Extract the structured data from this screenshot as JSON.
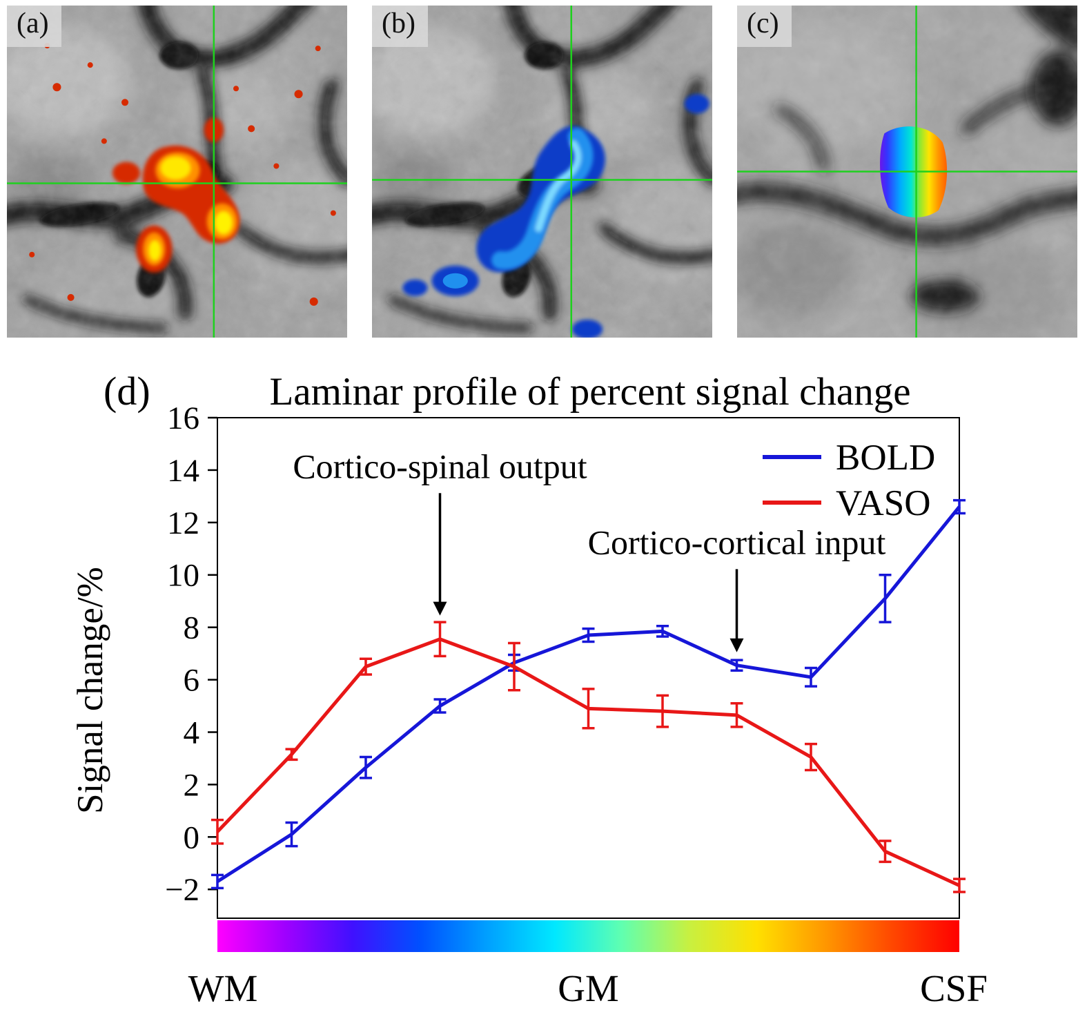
{
  "figure": {
    "crosshair_color": "#1ed11e",
    "panels": {
      "a": {
        "label": "(a)",
        "overlay": "activation-hot-colormap"
      },
      "b": {
        "label": "(b)",
        "overlay": "activation-cool-colormap"
      },
      "c": {
        "label": "(c)",
        "overlay": "cortical-depth-rainbow"
      },
      "d": {
        "label": "(d)"
      }
    }
  },
  "chart_data": {
    "type": "line",
    "title": "Laminar profile of percent signal change",
    "ylabel": "Signal change/%",
    "ylim": [
      -3.1,
      16
    ],
    "yticks": [
      -2,
      0,
      2,
      4,
      6,
      8,
      10,
      12,
      14,
      16
    ],
    "x": [
      0,
      1,
      2,
      3,
      4,
      5,
      6,
      7,
      8,
      9,
      10
    ],
    "x_axis_labels": [
      "WM",
      "GM",
      "CSF"
    ],
    "grid": false,
    "legend_position": "top-right",
    "series": [
      {
        "name": "BOLD",
        "color": "#1616d8",
        "values": [
          -1.7,
          0.1,
          2.65,
          5.0,
          6.65,
          7.7,
          7.85,
          6.55,
          6.1,
          9.1,
          12.6
        ],
        "errors": [
          0.25,
          0.45,
          0.4,
          0.25,
          0.3,
          0.25,
          0.2,
          0.2,
          0.35,
          0.9,
          0.25
        ]
      },
      {
        "name": "VASO",
        "color": "#e81717",
        "values": [
          0.2,
          3.15,
          6.5,
          7.55,
          6.5,
          4.9,
          4.8,
          4.65,
          3.05,
          -0.55,
          -1.85
        ],
        "errors": [
          0.45,
          0.2,
          0.3,
          0.65,
          0.9,
          0.75,
          0.6,
          0.45,
          0.5,
          0.4,
          0.25
        ]
      }
    ],
    "annotations": [
      {
        "text": "Cortico-spinal output",
        "x": 3,
        "y": 8.45,
        "label_y": 13.7
      },
      {
        "text": "Cortico-cortical input",
        "x": 7,
        "y": 7.05,
        "label_y": 10.8
      }
    ],
    "colorbar_colors": [
      "#ff00ff",
      "#a000ff",
      "#4010ff",
      "#0050ff",
      "#00a0ff",
      "#00e8ff",
      "#60ffb0",
      "#c8f040",
      "#ffe000",
      "#ff9800",
      "#ff4800",
      "#ff0000"
    ]
  }
}
